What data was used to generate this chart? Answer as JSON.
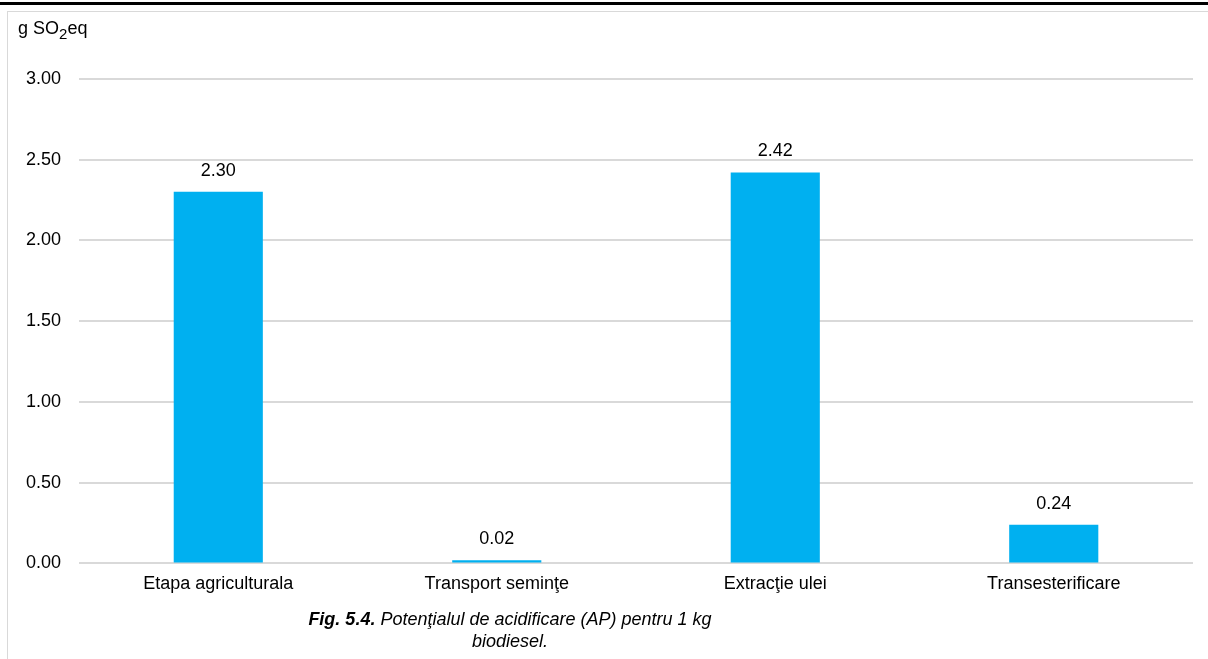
{
  "chart_data": {
    "type": "bar",
    "ylabel": "g SO$_{2}$eq",
    "categories": [
      "Etapa agriculturala",
      "Transport seminţe",
      "Extracţie ulei",
      "Transesterificare"
    ],
    "values": [
      2.3,
      0.02,
      2.42,
      0.24
    ],
    "value_labels": [
      "2.30",
      "0.02",
      "2.42",
      "0.24"
    ],
    "color": "#00b0f0",
    "ylim": [
      0,
      3
    ],
    "yticks": [
      {
        "value": 0,
        "label": "0.00"
      },
      {
        "value": 0.5,
        "label": "0.50"
      },
      {
        "value": 1,
        "label": "1.00"
      },
      {
        "value": 1.5,
        "label": "1.50"
      },
      {
        "value": 2,
        "label": "2.00"
      },
      {
        "value": 2.5,
        "label": "2.50"
      },
      {
        "value": 3,
        "label": "3.00"
      }
    ],
    "grid": "y",
    "legend": false,
    "annotations": [
      "Fig. 5.4.",
      "Potenţialul de acidificare (AP) pentru 1 kg biodiesel."
    ]
  }
}
